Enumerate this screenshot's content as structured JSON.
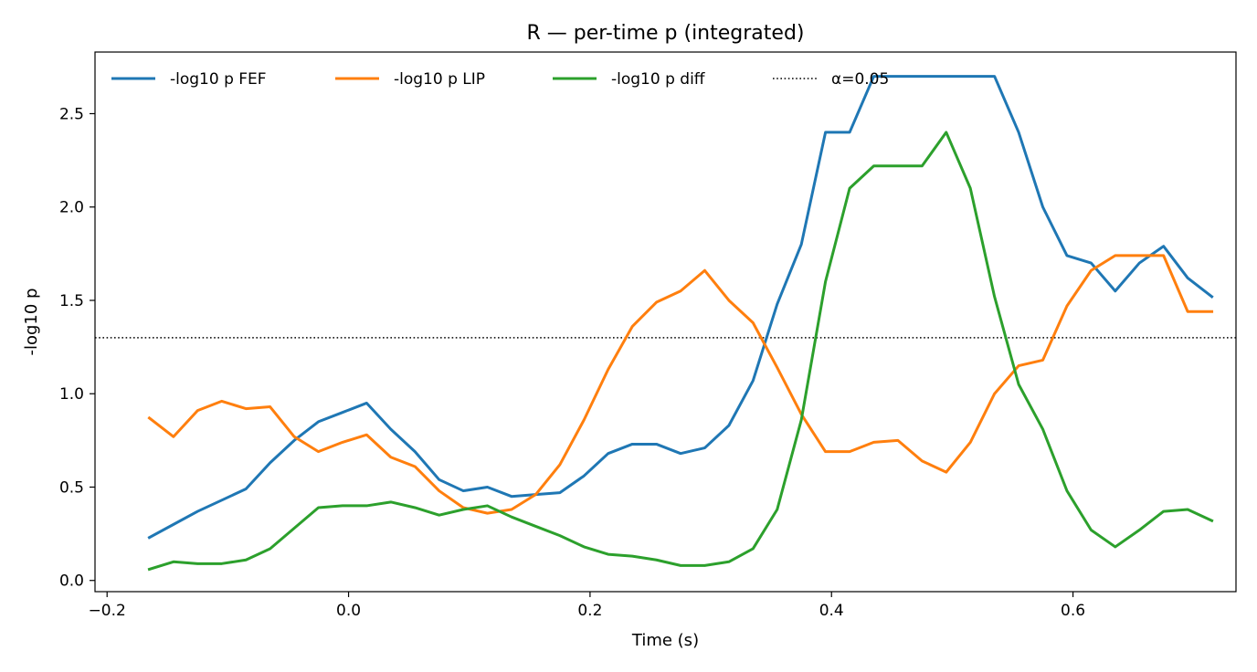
{
  "chart_data": {
    "type": "line",
    "title": "R — per-time p (integrated)",
    "xlabel": "Time (s)",
    "ylabel": "-log10 p",
    "xlim": [
      -0.21,
      0.735
    ],
    "ylim": [
      -0.06,
      2.83
    ],
    "xticks": [
      -0.2,
      0.0,
      0.2,
      0.4,
      0.6
    ],
    "xtick_labels": [
      "−0.2",
      "0.0",
      "0.2",
      "0.4",
      "0.6"
    ],
    "yticks": [
      0.0,
      0.5,
      1.0,
      1.5,
      2.0,
      2.5
    ],
    "ytick_labels": [
      "0.0",
      "0.5",
      "1.0",
      "1.5",
      "2.0",
      "2.5"
    ],
    "grid": false,
    "legend_position": "top-left",
    "x": [
      -0.165,
      -0.145,
      -0.125,
      -0.105,
      -0.085,
      -0.065,
      -0.045,
      -0.025,
      -0.005,
      0.015,
      0.035,
      0.055,
      0.075,
      0.095,
      0.115,
      0.135,
      0.155,
      0.175,
      0.195,
      0.215,
      0.235,
      0.255,
      0.275,
      0.295,
      0.315,
      0.335,
      0.355,
      0.375,
      0.395,
      0.415,
      0.435,
      0.455,
      0.475,
      0.495,
      0.515,
      0.535,
      0.555,
      0.575,
      0.595,
      0.615,
      0.635,
      0.655,
      0.675,
      0.695,
      0.715
    ],
    "series": [
      {
        "name": "-log10 p FEF",
        "color": "#1f77b4",
        "values": [
          0.23,
          0.3,
          0.37,
          0.43,
          0.49,
          0.63,
          0.75,
          0.85,
          0.9,
          0.95,
          0.81,
          0.69,
          0.54,
          0.48,
          0.5,
          0.45,
          0.46,
          0.47,
          0.56,
          0.68,
          0.73,
          0.73,
          0.68,
          0.71,
          0.83,
          1.07,
          1.48,
          1.8,
          2.4,
          2.4,
          2.7,
          2.7,
          2.7,
          2.7,
          2.7,
          2.7,
          2.4,
          2.0,
          1.74,
          1.7,
          1.55,
          1.7,
          1.79,
          1.62,
          1.52
        ]
      },
      {
        "name": "-log10 p LIP",
        "color": "#ff7f0e",
        "values": [
          0.87,
          0.77,
          0.91,
          0.96,
          0.92,
          0.93,
          0.77,
          0.69,
          0.74,
          0.78,
          0.66,
          0.61,
          0.48,
          0.39,
          0.36,
          0.38,
          0.46,
          0.62,
          0.86,
          1.13,
          1.36,
          1.49,
          1.55,
          1.66,
          1.5,
          1.38,
          1.14,
          0.89,
          0.69,
          0.69,
          0.74,
          0.75,
          0.64,
          0.58,
          0.74,
          1.0,
          1.15,
          1.18,
          1.47,
          1.66,
          1.74,
          1.74,
          1.74,
          1.44,
          1.44
        ]
      },
      {
        "name": "-log10 p diff",
        "color": "#2ca02c",
        "values": [
          0.06,
          0.1,
          0.09,
          0.09,
          0.11,
          0.17,
          0.28,
          0.39,
          0.4,
          0.4,
          0.42,
          0.39,
          0.35,
          0.38,
          0.4,
          0.34,
          0.29,
          0.24,
          0.18,
          0.14,
          0.13,
          0.11,
          0.08,
          0.08,
          0.1,
          0.17,
          0.38,
          0.86,
          1.6,
          2.1,
          2.22,
          2.22,
          2.22,
          2.4,
          2.1,
          1.52,
          1.05,
          0.81,
          0.48,
          0.27,
          0.18,
          0.27,
          0.37,
          0.38,
          0.32
        ]
      }
    ],
    "reference_line": {
      "name": "α=0.05",
      "y": 1.3,
      "color": "#000000",
      "style": "dotted"
    }
  }
}
